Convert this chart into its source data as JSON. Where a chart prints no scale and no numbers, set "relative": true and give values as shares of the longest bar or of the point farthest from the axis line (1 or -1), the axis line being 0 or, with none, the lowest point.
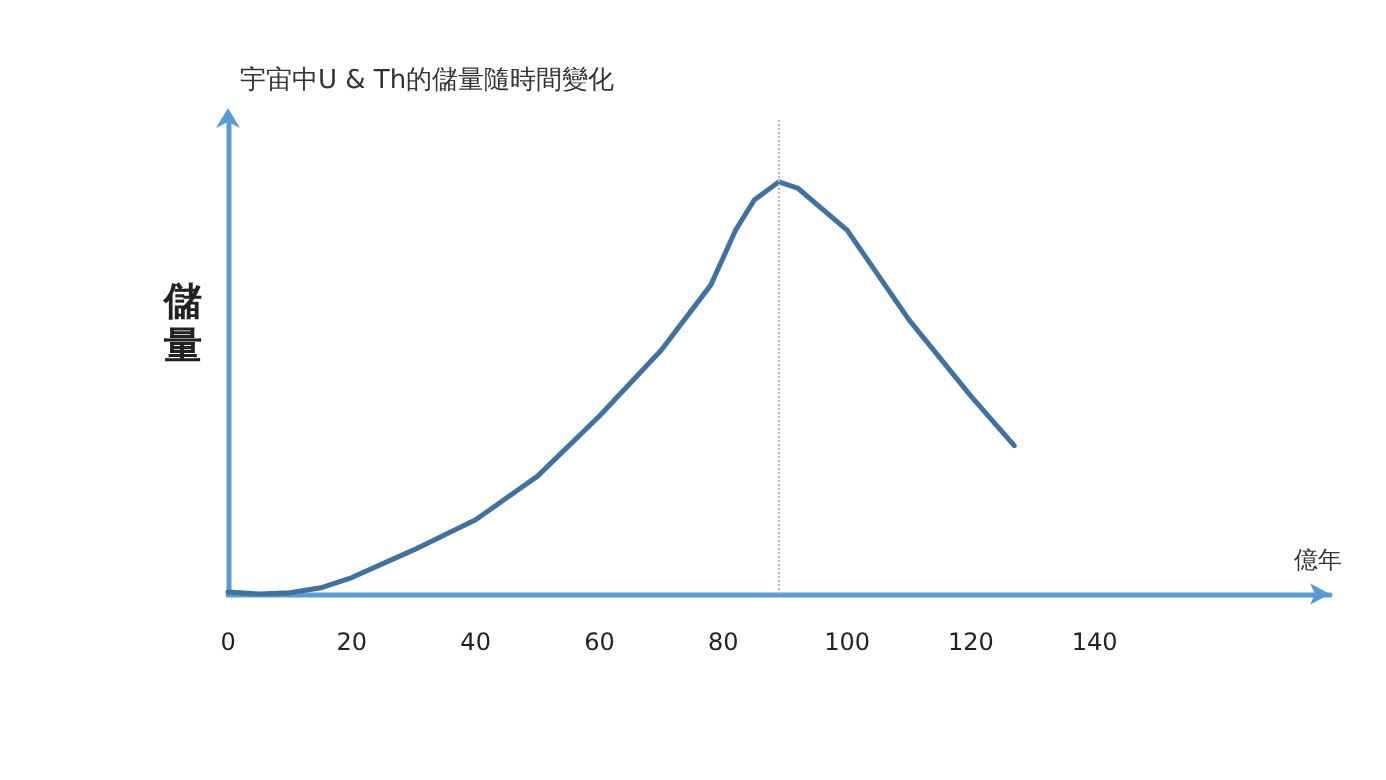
{
  "chart_data": {
    "type": "line",
    "title": "宇宙中U & Th的儲量隨時間變化",
    "xlabel": "億年",
    "ylabel": "儲量",
    "relative": true,
    "x": [
      0,
      5,
      10,
      15,
      20,
      30,
      40,
      50,
      60,
      70,
      78,
      82,
      85,
      89,
      92,
      100,
      110,
      120,
      127
    ],
    "series": [
      {
        "color": "#41719c",
        "values": [
          0.005,
          0,
          0.003,
          0.015,
          0.04,
          0.107,
          0.18,
          0.286,
          0.432,
          0.592,
          0.75,
          0.883,
          0.956,
          1,
          0.985,
          0.883,
          0.665,
          0.48,
          0.36
        ]
      }
    ],
    "xlim": [
      0,
      178
    ],
    "xticks": [
      0,
      20,
      40,
      60,
      80,
      100,
      120,
      140
    ],
    "ref_lines": [
      {
        "axis": "x",
        "value": 89,
        "color": "#bbbbbb",
        "line_style": "dotted"
      }
    ],
    "marker": "none",
    "line_style": "solid"
  }
}
